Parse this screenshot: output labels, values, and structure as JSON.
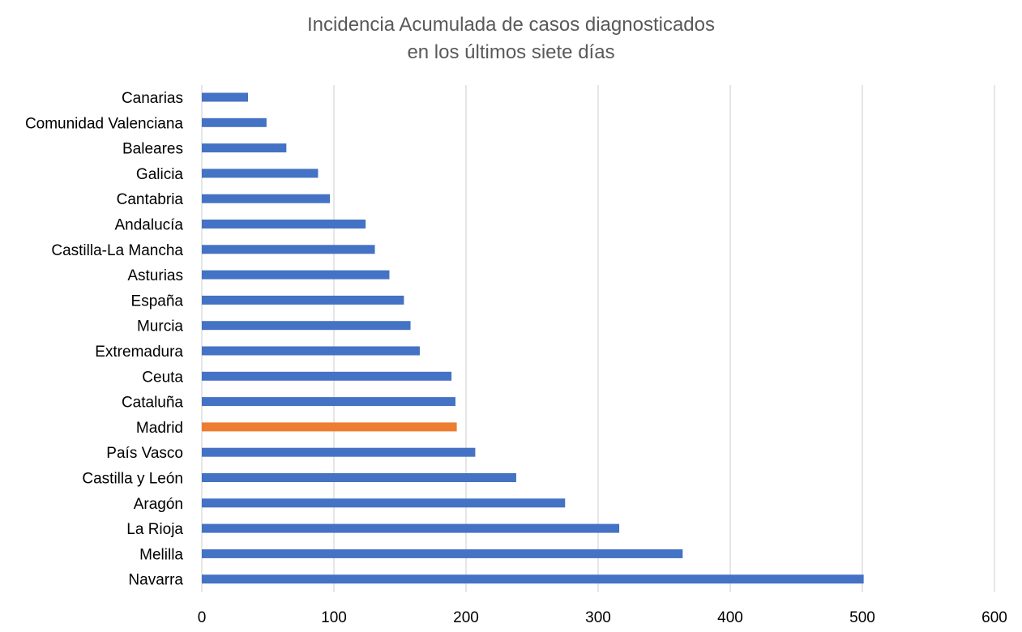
{
  "chart_data": {
    "type": "bar",
    "orientation": "horizontal",
    "title": "Incidencia Acumulada de casos diagnosticados",
    "subtitle": "en los últimos siete días",
    "xlabel": "",
    "ylabel": "",
    "xlim": [
      0,
      600
    ],
    "x_ticks": [
      "0",
      "100",
      "200",
      "300",
      "400",
      "500",
      "600"
    ],
    "grid": "vertical",
    "legend": "none",
    "bar_color": "#4472C4",
    "highlight_color": "#ED7D31",
    "categories": [
      "Canarias",
      "Comunidad Valenciana",
      "Baleares",
      "Galicia",
      "Cantabria",
      "Andalucía",
      "Castilla-La Mancha",
      "Asturias",
      "España",
      "Murcia",
      "Extremadura",
      "Ceuta",
      "Cataluña",
      "Madrid",
      "País Vasco",
      "Castilla y León",
      "Aragón",
      "La Rioja",
      "Melilla",
      "Navarra"
    ],
    "values": [
      35,
      49,
      64,
      88,
      97,
      124,
      131,
      142,
      153,
      158,
      165,
      189,
      192,
      193,
      207,
      238,
      275,
      316,
      364,
      501
    ],
    "highlight": "Madrid"
  }
}
